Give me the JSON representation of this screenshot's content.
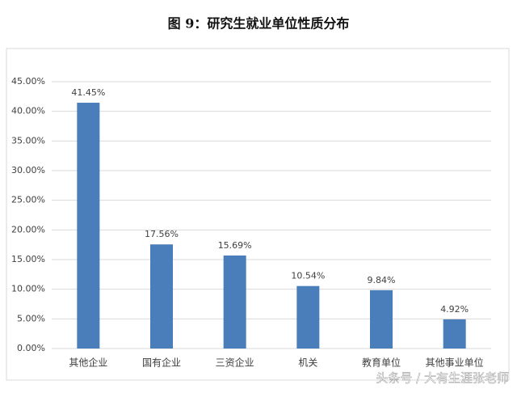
{
  "chart_data": {
    "type": "bar",
    "title": "图 9：研究生就业单位性质分布",
    "categories": [
      "其他企业",
      "国有企业",
      "三资企业",
      "机关",
      "教育单位",
      "其他事业单位"
    ],
    "values": [
      41.45,
      17.56,
      15.69,
      10.54,
      9.84,
      4.92
    ],
    "value_labels": [
      "41.45%",
      "17.56%",
      "15.69%",
      "10.54%",
      "9.84%",
      "4.92%"
    ],
    "color": "#4a7ebb",
    "ylim": [
      0,
      45
    ],
    "yticks": [
      {
        "value": 0,
        "label": "0.00%"
      },
      {
        "value": 5,
        "label": "5.00%"
      },
      {
        "value": 10,
        "label": "10.00%"
      },
      {
        "value": 15,
        "label": "15.00%"
      },
      {
        "value": 20,
        "label": "20.00%"
      },
      {
        "value": 25,
        "label": "25.00%"
      },
      {
        "value": 30,
        "label": "30.00%"
      },
      {
        "value": 35,
        "label": "35.00%"
      },
      {
        "value": 40,
        "label": "40.00%"
      },
      {
        "value": 45,
        "label": "45.00%"
      }
    ],
    "grid": true,
    "watermark": "头条号 / 大有生涯张老师"
  }
}
